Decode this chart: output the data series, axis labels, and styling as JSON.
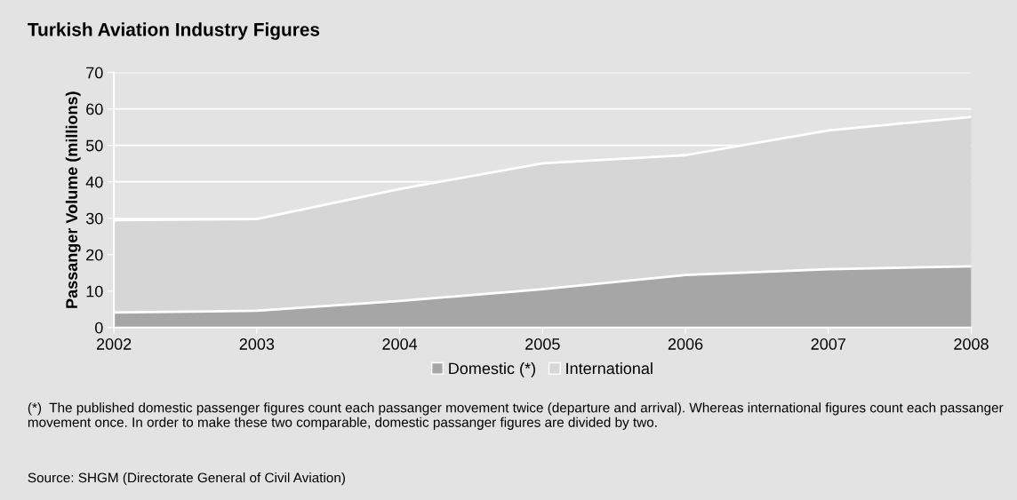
{
  "chart_data": {
    "type": "area",
    "stacked": true,
    "title": "Turkish Aviation Industry Figures",
    "ylabel": "Passanger Volume (millions)",
    "categories": [
      "2002",
      "2003",
      "2004",
      "2005",
      "2006",
      "2007",
      "2008"
    ],
    "series": [
      {
        "name": "Domestic (*)",
        "color": "#a6a6a6",
        "values": [
          4.1,
          4.6,
          7.3,
          10.5,
          14.4,
          16.0,
          16.8
        ]
      },
      {
        "name": "International",
        "color": "#d6d6d6",
        "values": [
          25.4,
          25.2,
          30.7,
          34.6,
          32.9,
          38.1,
          41.0
        ]
      }
    ],
    "ylim": [
      0,
      70
    ],
    "yticks": [
      0,
      10,
      20,
      30,
      40,
      50,
      60,
      70
    ],
    "grid": "y",
    "legend": "bottom",
    "annotations": [
      "(*)  The published domestic passenger figures count each passanger movement twice (departure and arrival). Whereas international figures count each passanger movement once. In order to make these two comparable, domestic passanger figures are divided by two.",
      "Source: SHGM (Directorate General of Civil Aviation)"
    ]
  }
}
